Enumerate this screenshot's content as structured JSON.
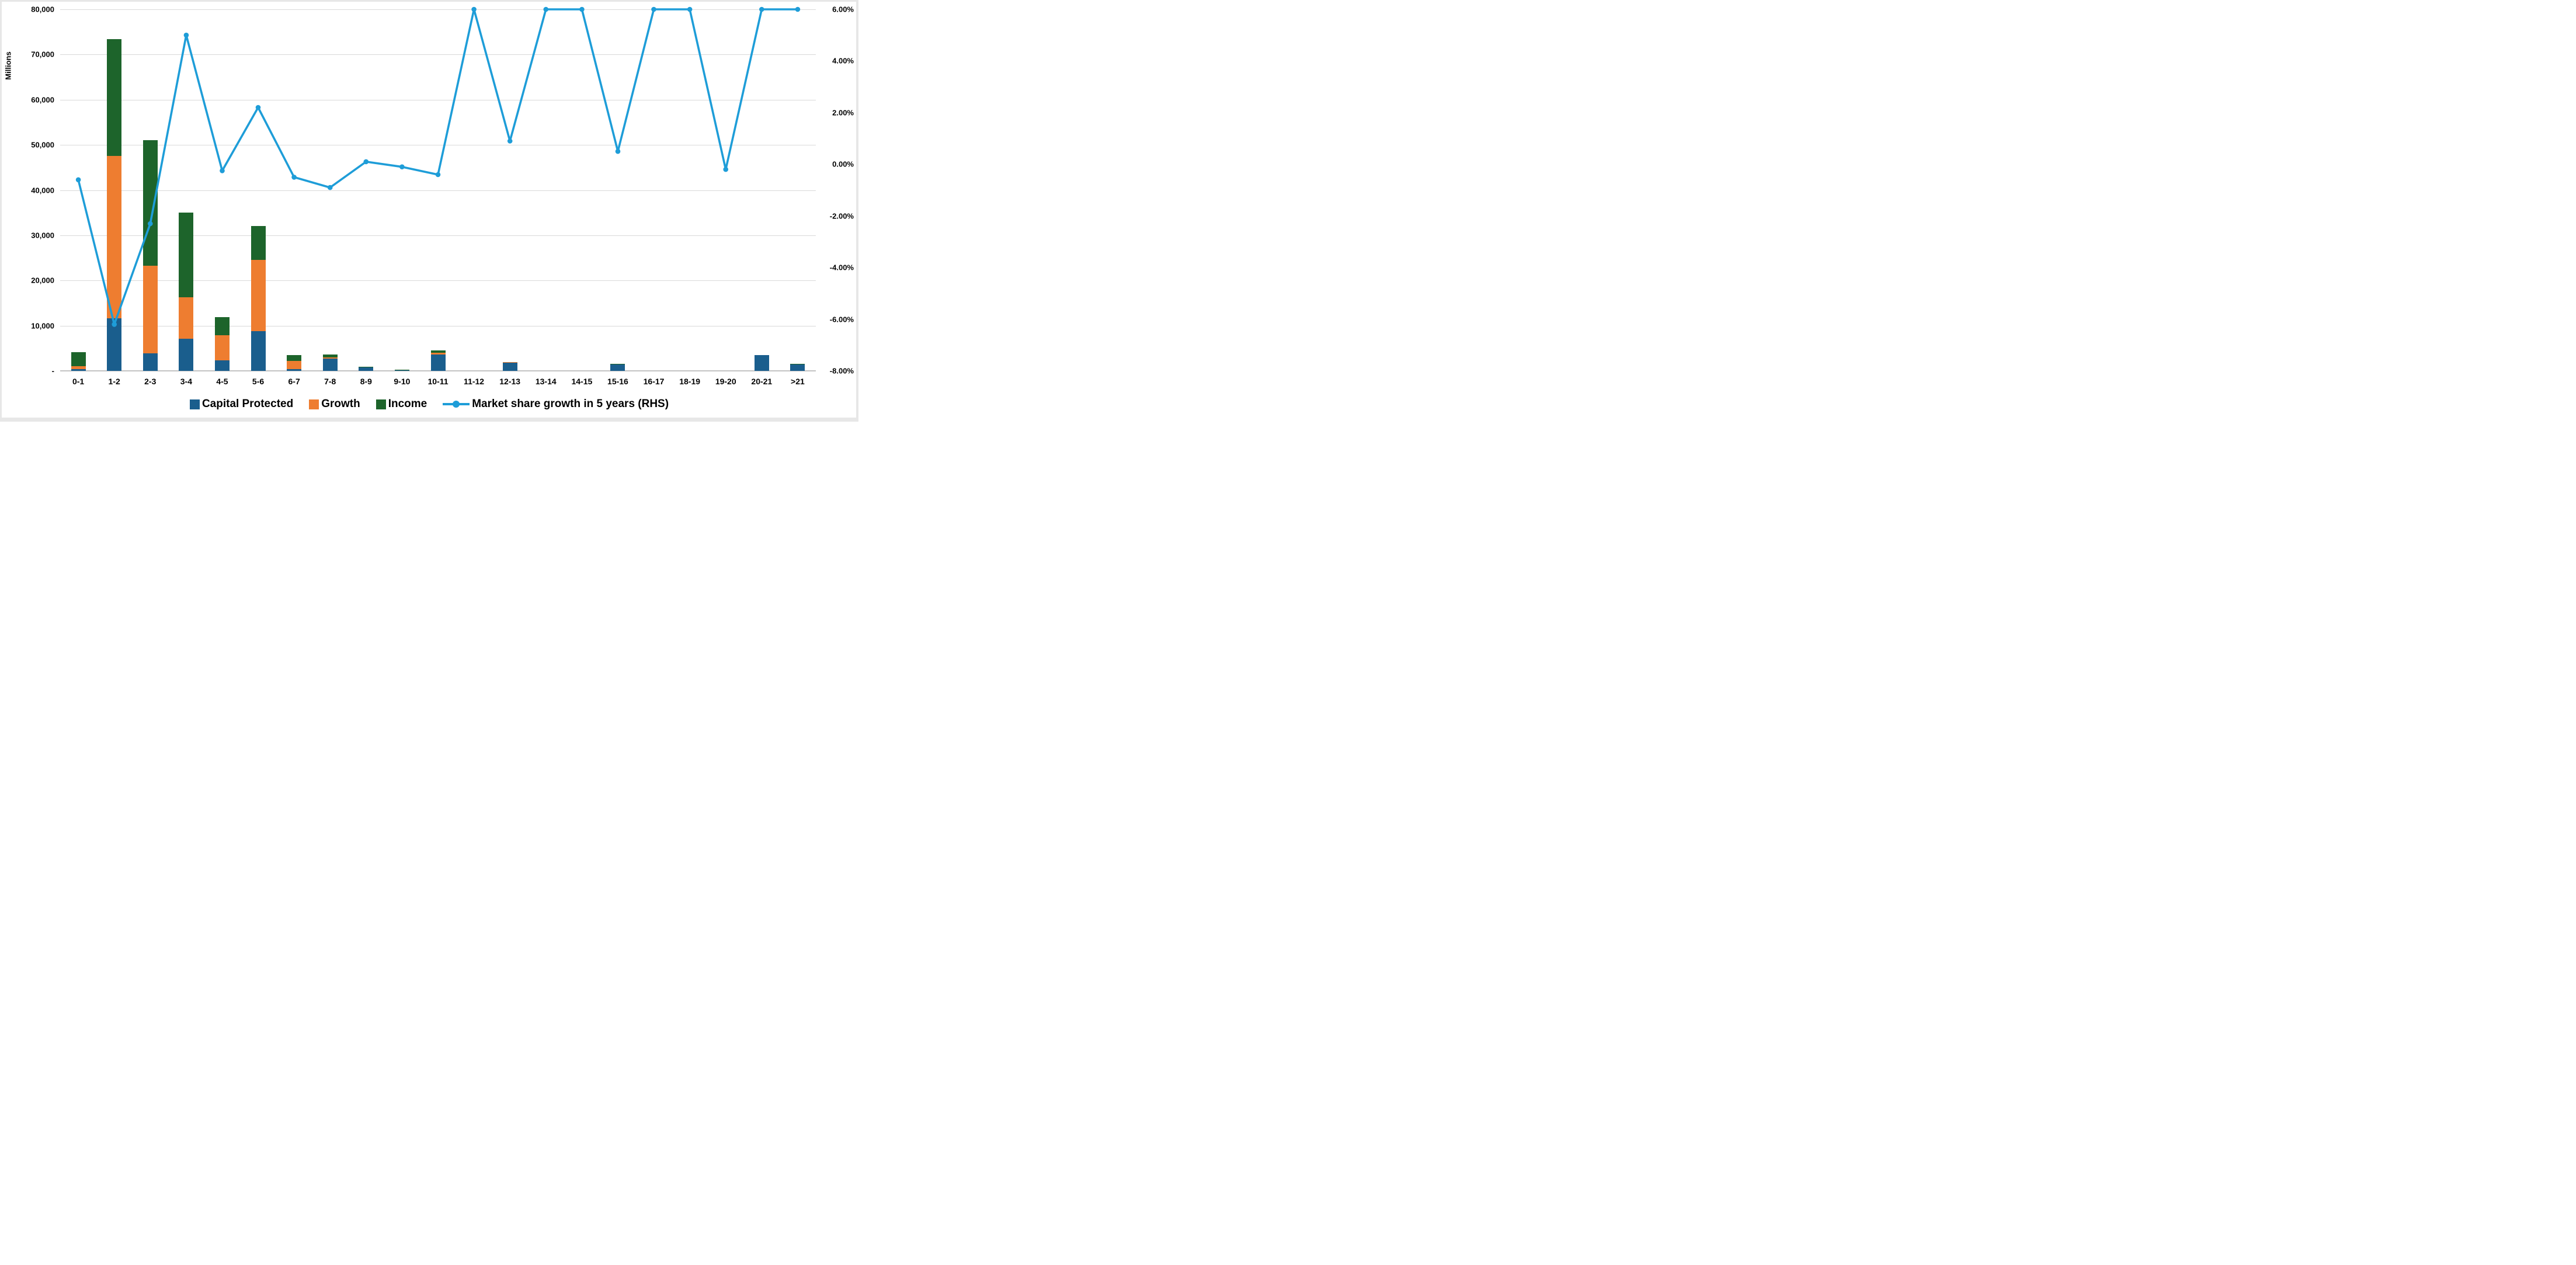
{
  "window": {
    "background": "#ffffff",
    "edge_color": "#e7e7e7"
  },
  "chart_data": {
    "type": "bar",
    "subtype": "stacked-columns-with-secondary-axis-line",
    "title": "",
    "grid": true,
    "legend_position": "bottom",
    "categories": [
      "0-1",
      "1-2",
      "2-3",
      "3-4",
      "4-5",
      "5-6",
      "6-7",
      "7-8",
      "8-9",
      "9-10",
      "10-11",
      "11-12",
      "12-13",
      "13-14",
      "14-15",
      "15-16",
      "16-17",
      "18-19",
      "19-20",
      "20-21",
      ">21"
    ],
    "series": [
      {
        "name": "Capital Protected",
        "type": "bar",
        "axis": "left",
        "color": "#1a5e8d",
        "values": [
          350,
          11600,
          3900,
          7100,
          2300,
          8800,
          400,
          2700,
          800,
          100,
          3600,
          0,
          1900,
          0,
          0,
          1450,
          0,
          0,
          0,
          3500,
          1400
        ]
      },
      {
        "name": "Growth",
        "type": "bar",
        "axis": "left",
        "color": "#ee7d30",
        "values": [
          650,
          35900,
          19400,
          9200,
          5600,
          15700,
          1750,
          300,
          50,
          100,
          450,
          0,
          100,
          0,
          0,
          0,
          0,
          0,
          0,
          0,
          150
        ]
      },
      {
        "name": "Income",
        "type": "bar",
        "axis": "left",
        "color": "#1d642b",
        "values": [
          3100,
          25900,
          27700,
          18700,
          4000,
          7500,
          1350,
          600,
          100,
          100,
          450,
          0,
          0,
          0,
          0,
          100,
          0,
          0,
          0,
          0,
          50
        ]
      },
      {
        "name": "Market share growth in 5 years (RHS)",
        "type": "line",
        "axis": "right",
        "color": "#1e9dd8",
        "values": [
          -0.6,
          -6.2,
          -2.3,
          5.0,
          -0.25,
          2.2,
          -0.5,
          -0.9,
          0.1,
          -0.1,
          -0.4,
          6.0,
          0.9,
          6.0,
          6.0,
          0.5,
          6.0,
          6.0,
          -0.2,
          6.0,
          6.0
        ]
      }
    ],
    "left_axis": {
      "label": "Millions",
      "min": 0,
      "max": 80000,
      "tick_labels": [
        "80,000",
        "70,000",
        "60,000",
        "50,000",
        "40,000",
        "30,000",
        "20,000",
        "10,000",
        "-"
      ]
    },
    "right_axis": {
      "min": -8,
      "max": 6,
      "tick_labels": [
        "6.00%",
        "4.00%",
        "2.00%",
        "0.00%",
        "-2.00%",
        "-4.00%",
        "-6.00%",
        "-8.00%"
      ]
    }
  }
}
